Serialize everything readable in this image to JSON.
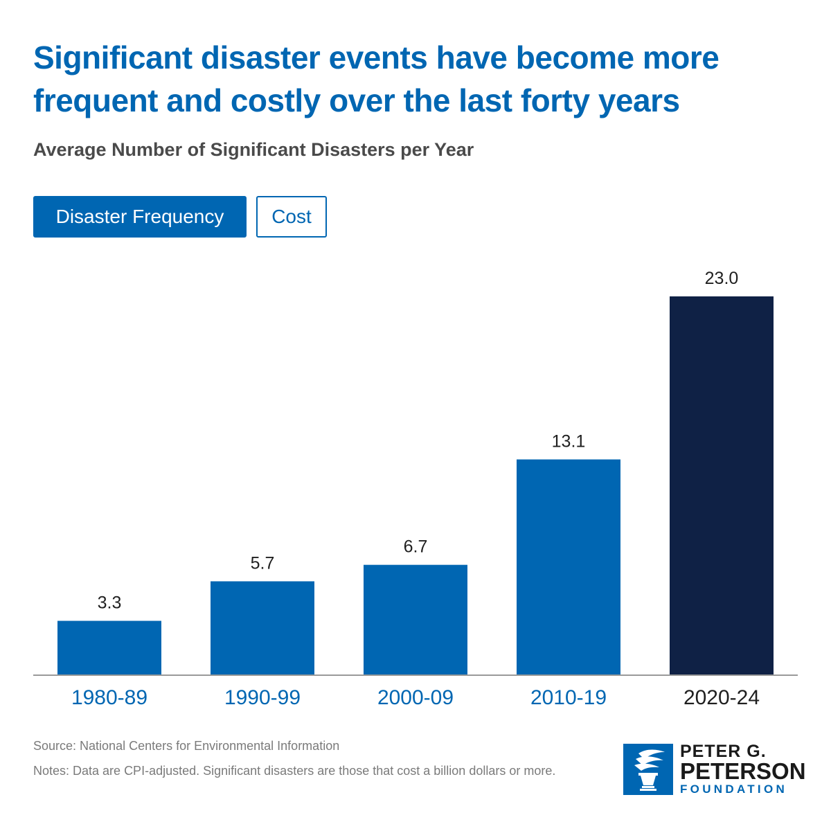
{
  "header": {
    "title": "Significant disaster events have become more frequent and costly over the last forty years",
    "subtitle": "Average Number of Significant Disasters per Year"
  },
  "toggles": {
    "frequency_label": "Disaster Frequency",
    "cost_label": "Cost"
  },
  "chart_data": {
    "type": "bar",
    "title": "Average Number of Significant Disasters per Year",
    "categories": [
      "1980-89",
      "1990-99",
      "2000-09",
      "2010-19",
      "2020-24"
    ],
    "values": [
      3.3,
      5.7,
      6.7,
      13.1,
      23.0
    ],
    "value_labels": [
      "3.3",
      "5.7",
      "6.7",
      "13.1",
      "23.0"
    ],
    "xlabel": "",
    "ylabel": "",
    "ylim": [
      0,
      23.0
    ],
    "grid": false,
    "highlight_index": 4
  },
  "colors": {
    "accent": "#0066b2",
    "highlight_bar": "#0f2145",
    "label_dark": "#1f1f1f",
    "axis": "#999999"
  },
  "footer": {
    "source": "Source: National Centers for Environmental Information",
    "notes": "Notes: Data are CPI-adjusted. Significant disasters are those that cost a billion dollars or more."
  },
  "logo": {
    "line1": "PETER G.",
    "line2": "PETERSON",
    "line3": "FOUNDATION",
    "icon": "torch-icon"
  }
}
